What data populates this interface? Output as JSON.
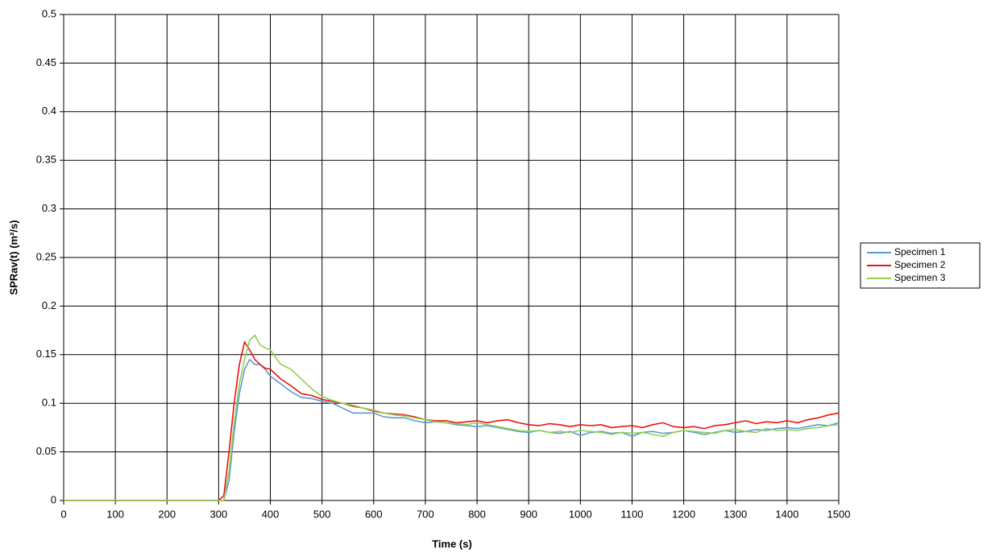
{
  "chart_data": {
    "type": "line",
    "xlabel": "Time (s)",
    "ylabel": "SPRav(t) (m²/s)",
    "x": [
      0,
      100,
      200,
      300,
      310,
      320,
      330,
      340,
      350,
      360,
      370,
      380,
      390,
      400,
      420,
      440,
      460,
      480,
      500,
      520,
      540,
      560,
      580,
      600,
      620,
      640,
      660,
      680,
      700,
      720,
      740,
      760,
      780,
      800,
      820,
      840,
      860,
      880,
      900,
      920,
      940,
      960,
      980,
      1000,
      1020,
      1040,
      1060,
      1080,
      1100,
      1120,
      1140,
      1160,
      1180,
      1200,
      1220,
      1240,
      1260,
      1280,
      1300,
      1320,
      1340,
      1360,
      1380,
      1400,
      1420,
      1440,
      1460,
      1480,
      1500
    ],
    "series": [
      {
        "name": "Specimen 1",
        "color": "#5b9bd5",
        "values": [
          0,
          0,
          0,
          0,
          0,
          0.02,
          0.07,
          0.11,
          0.135,
          0.145,
          0.14,
          0.14,
          0.135,
          0.128,
          0.12,
          0.112,
          0.106,
          0.105,
          0.102,
          0.1,
          0.095,
          0.09,
          0.09,
          0.09,
          0.086,
          0.085,
          0.085,
          0.082,
          0.08,
          0.081,
          0.08,
          0.078,
          0.077,
          0.076,
          0.077,
          0.075,
          0.073,
          0.071,
          0.07,
          0.072,
          0.07,
          0.069,
          0.071,
          0.067,
          0.07,
          0.071,
          0.069,
          0.07,
          0.066,
          0.07,
          0.071,
          0.069,
          0.07,
          0.072,
          0.07,
          0.068,
          0.07,
          0.072,
          0.07,
          0.071,
          0.073,
          0.072,
          0.074,
          0.075,
          0.074,
          0.076,
          0.078,
          0.077,
          0.08
        ]
      },
      {
        "name": "Specimen 2",
        "color": "#ee1111",
        "values": [
          0,
          0,
          0,
          0,
          0.005,
          0.05,
          0.1,
          0.14,
          0.163,
          0.155,
          0.145,
          0.14,
          0.136,
          0.135,
          0.125,
          0.118,
          0.11,
          0.108,
          0.104,
          0.102,
          0.1,
          0.097,
          0.095,
          0.092,
          0.09,
          0.089,
          0.088,
          0.086,
          0.083,
          0.082,
          0.082,
          0.08,
          0.081,
          0.082,
          0.08,
          0.082,
          0.083,
          0.08,
          0.078,
          0.077,
          0.079,
          0.078,
          0.076,
          0.078,
          0.077,
          0.078,
          0.075,
          0.076,
          0.077,
          0.075,
          0.078,
          0.08,
          0.076,
          0.075,
          0.076,
          0.074,
          0.077,
          0.078,
          0.08,
          0.082,
          0.079,
          0.081,
          0.08,
          0.082,
          0.08,
          0.083,
          0.085,
          0.088,
          0.09
        ]
      },
      {
        "name": "Specimen 3",
        "color": "#92d050",
        "values": [
          0,
          0,
          0,
          0,
          0,
          0.03,
          0.08,
          0.12,
          0.145,
          0.165,
          0.17,
          0.16,
          0.157,
          0.155,
          0.14,
          0.135,
          0.125,
          0.115,
          0.107,
          0.103,
          0.1,
          0.098,
          0.095,
          0.093,
          0.09,
          0.088,
          0.087,
          0.085,
          0.083,
          0.081,
          0.08,
          0.079,
          0.078,
          0.08,
          0.078,
          0.076,
          0.074,
          0.072,
          0.071,
          0.072,
          0.07,
          0.071,
          0.07,
          0.072,
          0.071,
          0.07,
          0.068,
          0.07,
          0.069,
          0.07,
          0.068,
          0.066,
          0.07,
          0.072,
          0.071,
          0.07,
          0.069,
          0.072,
          0.073,
          0.071,
          0.07,
          0.074,
          0.072,
          0.073,
          0.072,
          0.074,
          0.075,
          0.077,
          0.078
        ]
      }
    ],
    "xlim": [
      0,
      1500
    ],
    "xticks": [
      0,
      100,
      200,
      300,
      400,
      500,
      600,
      700,
      800,
      900,
      1000,
      1100,
      1200,
      1300,
      1400,
      1500
    ],
    "ylim": [
      0,
      0.5
    ],
    "yticks": [
      0,
      0.05,
      0.1,
      0.15,
      0.2,
      0.25,
      0.3,
      0.35,
      0.4,
      0.45,
      0.5
    ],
    "grid": true,
    "legend": "right"
  }
}
